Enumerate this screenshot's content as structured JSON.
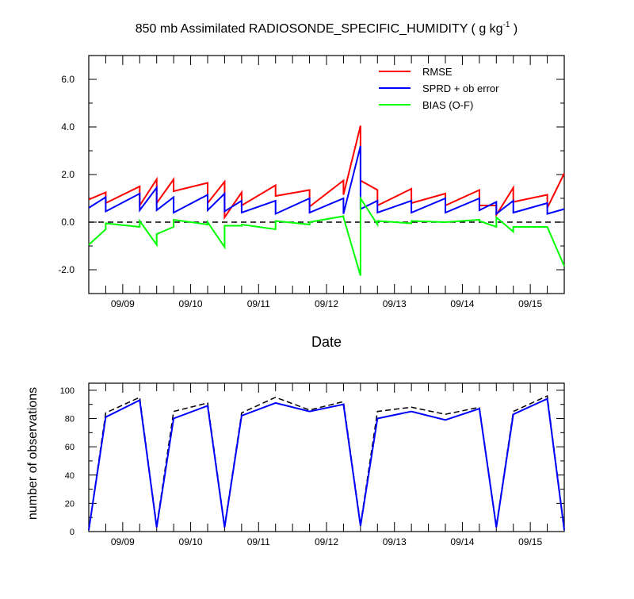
{
  "chart_data": [
    {
      "type": "line",
      "title": "850 mb Assimilated RADIOSONDE_SPECIFIC_HUMIDITY ( g kg",
      "title_superscript": "-1",
      "title_suffix": " )",
      "xlabel": "Date",
      "ylabel": "",
      "xlim": [
        0,
        84
      ],
      "ylim": [
        -3,
        7
      ],
      "yticks": [
        -2.0,
        0.0,
        2.0,
        4.0,
        6.0
      ],
      "ytick_labels": [
        "-2.0",
        "0.0",
        "2.0",
        "4.0",
        "6.0"
      ],
      "xtick_positions": [
        6,
        18,
        30,
        42,
        54,
        66,
        78
      ],
      "xtick_labels": [
        "09/09",
        "09/10",
        "09/11",
        "09/12",
        "09/13",
        "09/14",
        "09/15"
      ],
      "reference_line": {
        "y": 0,
        "style": "dashed",
        "color": "#000000"
      },
      "legend": {
        "placement": "top-right",
        "entries": [
          {
            "label": "RMSE",
            "color": "#ff0000"
          },
          {
            "label": "SPRD + ob error",
            "color": "#0000ff"
          },
          {
            "label": "BIAS (O-F)",
            "color": "#00ff00"
          }
        ]
      },
      "series": [
        {
          "name": "RMSE",
          "color": "#ff0000",
          "segments": [
            [
              [
                0,
                0.95
              ],
              [
                3,
                1.25
              ],
              [
                3,
                0.8
              ],
              [
                9,
                1.5
              ],
              [
                9,
                0.7
              ],
              [
                12,
                1.8
              ],
              [
                12,
                0.8
              ],
              [
                15,
                1.8
              ],
              [
                15,
                1.3
              ],
              [
                21,
                1.65
              ],
              [
                21,
                0.8
              ],
              [
                24,
                1.7
              ],
              [
                24,
                0.2
              ],
              [
                27,
                1.25
              ],
              [
                27,
                0.7
              ],
              [
                33,
                1.55
              ],
              [
                33,
                1.1
              ],
              [
                39,
                1.35
              ],
              [
                39,
                0.65
              ],
              [
                45,
                1.75
              ],
              [
                45,
                1.15
              ],
              [
                48,
                4.05
              ],
              [
                48,
                1.75
              ],
              [
                51,
                1.35
              ],
              [
                51,
                0.7
              ],
              [
                57,
                1.4
              ],
              [
                57,
                0.8
              ],
              [
                63,
                1.2
              ],
              [
                63,
                0.7
              ],
              [
                69,
                1.35
              ],
              [
                69,
                0.7
              ],
              [
                72,
                0.7
              ],
              [
                72,
                0.3
              ],
              [
                75,
                1.45
              ],
              [
                75,
                0.85
              ],
              [
                81,
                1.15
              ],
              [
                81,
                0.6
              ],
              [
                84,
                2.05
              ]
            ]
          ]
        },
        {
          "name": "SPRD + ob error",
          "color": "#0000ff",
          "segments": [
            [
              [
                0,
                0.6
              ],
              [
                3,
                1.05
              ],
              [
                3,
                0.45
              ],
              [
                9,
                1.2
              ],
              [
                9,
                0.5
              ],
              [
                12,
                1.45
              ],
              [
                12,
                0.5
              ],
              [
                15,
                1.05
              ],
              [
                15,
                0.4
              ],
              [
                21,
                1.15
              ],
              [
                21,
                0.5
              ],
              [
                24,
                1.2
              ],
              [
                24,
                0.45
              ],
              [
                27,
                0.9
              ],
              [
                27,
                0.4
              ],
              [
                33,
                0.9
              ],
              [
                33,
                0.35
              ],
              [
                39,
                1.0
              ],
              [
                39,
                0.4
              ],
              [
                45,
                1.0
              ],
              [
                45,
                0.35
              ],
              [
                48,
                3.2
              ],
              [
                48,
                0.55
              ],
              [
                51,
                0.9
              ],
              [
                51,
                0.4
              ],
              [
                57,
                0.9
              ],
              [
                57,
                0.4
              ],
              [
                63,
                1.0
              ],
              [
                63,
                0.4
              ],
              [
                69,
                1.0
              ],
              [
                69,
                0.5
              ],
              [
                72,
                0.85
              ],
              [
                72,
                0.35
              ],
              [
                75,
                0.9
              ],
              [
                75,
                0.4
              ],
              [
                81,
                0.8
              ],
              [
                81,
                0.35
              ],
              [
                84,
                0.55
              ]
            ]
          ]
        },
        {
          "name": "BIAS (O-F)",
          "color": "#00ff00",
          "segments": [
            [
              [
                0,
                -0.95
              ],
              [
                3,
                -0.3
              ],
              [
                3,
                -0.05
              ],
              [
                9,
                -0.2
              ],
              [
                9,
                0.05
              ],
              [
                12,
                -0.95
              ],
              [
                12,
                -0.5
              ],
              [
                15,
                -0.2
              ],
              [
                15,
                0.1
              ],
              [
                21,
                -0.1
              ],
              [
                21,
                0.0
              ],
              [
                24,
                -1.05
              ],
              [
                24,
                -0.15
              ],
              [
                27,
                -0.15
              ],
              [
                27,
                -0.1
              ],
              [
                33,
                -0.3
              ],
              [
                33,
                0.05
              ],
              [
                39,
                -0.1
              ],
              [
                39,
                0.0
              ],
              [
                45,
                0.25
              ],
              [
                45,
                0.2
              ],
              [
                48,
                -2.25
              ],
              [
                48,
                1.0
              ],
              [
                51,
                -0.1
              ],
              [
                51,
                0.05
              ],
              [
                57,
                -0.05
              ],
              [
                57,
                0.05
              ],
              [
                63,
                0.0
              ],
              [
                63,
                0.0
              ],
              [
                69,
                0.1
              ],
              [
                69,
                0.05
              ],
              [
                72,
                -0.2
              ],
              [
                72,
                0.2
              ],
              [
                75,
                -0.4
              ],
              [
                75,
                -0.2
              ],
              [
                81,
                -0.2
              ],
              [
                81,
                -0.2
              ],
              [
                84,
                -1.85
              ]
            ]
          ]
        }
      ]
    },
    {
      "type": "line",
      "title": "",
      "xlabel": "",
      "ylabel": "number of observations",
      "xlim": [
        0,
        84
      ],
      "ylim": [
        0,
        105
      ],
      "yticks": [
        0,
        20,
        40,
        60,
        80,
        100
      ],
      "ytick_labels": [
        "0",
        "20",
        "40",
        "60",
        "80",
        "100"
      ],
      "xtick_positions": [
        6,
        18,
        30,
        42,
        54,
        66,
        78
      ],
      "xtick_labels": [
        "09/09",
        "09/10",
        "09/11",
        "09/12",
        "09/13",
        "09/14",
        "09/15"
      ],
      "series": [
        {
          "style": "dashed",
          "color": "#000000",
          "segments": [
            [
              [
                0,
                1
              ],
              [
                3,
                84
              ],
              [
                9,
                95
              ],
              [
                12,
                4
              ],
              [
                15,
                85
              ],
              [
                21,
                91
              ],
              [
                24,
                4
              ],
              [
                27,
                84
              ],
              [
                33,
                95
              ],
              [
                39,
                86
              ],
              [
                45,
                92
              ],
              [
                48,
                5
              ],
              [
                51,
                85
              ],
              [
                57,
                88
              ],
              [
                63,
                83
              ],
              [
                69,
                88
              ],
              [
                72,
                4
              ],
              [
                75,
                85
              ],
              [
                81,
                96
              ],
              [
                84,
                2
              ]
            ]
          ]
        },
        {
          "style": "solid",
          "color": "#0000ff",
          "segments": [
            [
              [
                0,
                1
              ],
              [
                3,
                81
              ],
              [
                9,
                93
              ],
              [
                12,
                3
              ],
              [
                15,
                80
              ],
              [
                21,
                89
              ],
              [
                24,
                3
              ],
              [
                27,
                82
              ],
              [
                33,
                91
              ],
              [
                39,
                85
              ],
              [
                45,
                90
              ],
              [
                48,
                4
              ],
              [
                51,
                80
              ],
              [
                57,
                85
              ],
              [
                63,
                79
              ],
              [
                69,
                87
              ],
              [
                72,
                3
              ],
              [
                75,
                83
              ],
              [
                81,
                94
              ],
              [
                84,
                1
              ]
            ]
          ]
        }
      ]
    }
  ]
}
